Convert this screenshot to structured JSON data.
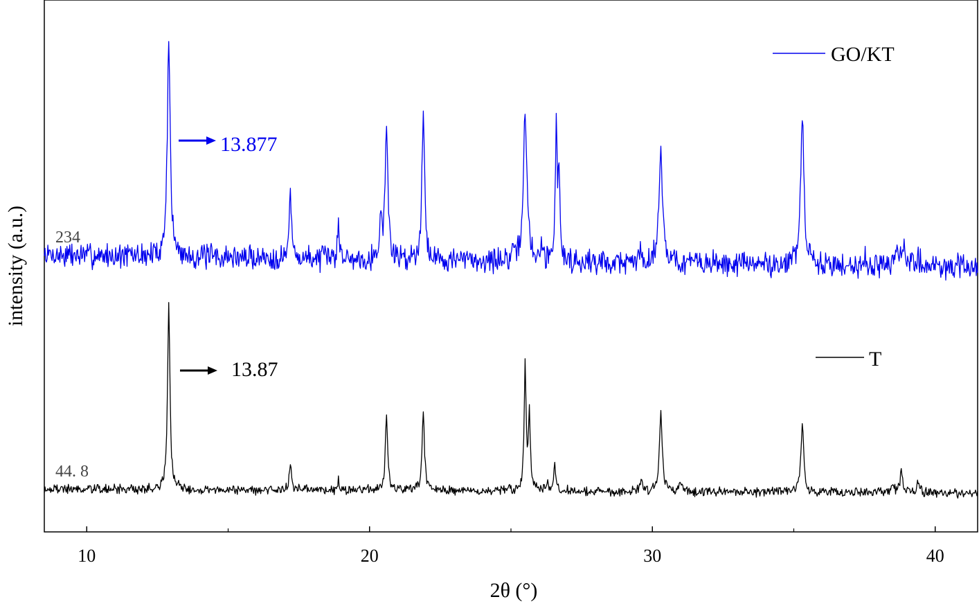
{
  "chart_data": {
    "type": "line",
    "title": "",
    "xlabel": "2θ (°)",
    "ylabel": "intensity (a.u.)",
    "xlim": [
      8.5,
      41.5
    ],
    "x_ticks": [
      10,
      20,
      30,
      40
    ],
    "x_tick_labels": [
      "10",
      "20",
      "30",
      "40"
    ],
    "x_minor_ticks": [
      15,
      25,
      35
    ],
    "y_ticks_visible": false,
    "grid": false,
    "legend_placement": "right",
    "series": [
      {
        "name": "GO/KT",
        "color": "#0000ee",
        "scale_label": "234",
        "baseline": 0.0,
        "noise": 0.045,
        "peaks": [
          {
            "x": 12.9,
            "height": 1.0,
            "width": 0.06
          },
          {
            "x": 17.2,
            "height": 0.28,
            "width": 0.05
          },
          {
            "x": 18.9,
            "height": 0.17,
            "width": 0.04
          },
          {
            "x": 20.4,
            "height": 0.17,
            "width": 0.05
          },
          {
            "x": 20.6,
            "height": 0.57,
            "width": 0.06
          },
          {
            "x": 21.9,
            "height": 0.64,
            "width": 0.06
          },
          {
            "x": 25.5,
            "height": 0.64,
            "width": 0.08
          },
          {
            "x": 26.1,
            "height": 0.05,
            "width": 0.06
          },
          {
            "x": 26.6,
            "height": 0.6,
            "width": 0.04
          },
          {
            "x": 26.7,
            "height": 0.35,
            "width": 0.04
          },
          {
            "x": 29.6,
            "height": 0.05,
            "width": 0.06
          },
          {
            "x": 30.3,
            "height": 0.5,
            "width": 0.08
          },
          {
            "x": 35.3,
            "height": 0.66,
            "width": 0.07
          },
          {
            "x": 37.5,
            "height": 0.03,
            "width": 0.08
          },
          {
            "x": 38.6,
            "height": 0.05,
            "width": 0.1
          },
          {
            "x": 38.9,
            "height": 0.08,
            "width": 0.08
          },
          {
            "x": 39.4,
            "height": 0.05,
            "width": 0.06
          }
        ],
        "annotation": "13.877"
      },
      {
        "name": "T",
        "color": "#000000",
        "scale_label": "44. 8",
        "baseline": 0.0,
        "noise": 0.018,
        "peaks": [
          {
            "x": 12.9,
            "height": 0.86,
            "width": 0.05
          },
          {
            "x": 17.2,
            "height": 0.12,
            "width": 0.05
          },
          {
            "x": 18.9,
            "height": 0.05,
            "width": 0.04
          },
          {
            "x": 20.6,
            "height": 0.34,
            "width": 0.05
          },
          {
            "x": 21.9,
            "height": 0.36,
            "width": 0.05
          },
          {
            "x": 24.9,
            "height": 0.02,
            "width": 0.03
          },
          {
            "x": 25.5,
            "height": 0.58,
            "width": 0.04
          },
          {
            "x": 25.65,
            "height": 0.35,
            "width": 0.04
          },
          {
            "x": 26.3,
            "height": 0.03,
            "width": 0.05
          },
          {
            "x": 26.55,
            "height": 0.11,
            "width": 0.04
          },
          {
            "x": 29.6,
            "height": 0.05,
            "width": 0.08
          },
          {
            "x": 30.3,
            "height": 0.37,
            "width": 0.06
          },
          {
            "x": 31.0,
            "height": 0.03,
            "width": 0.1
          },
          {
            "x": 35.3,
            "height": 0.31,
            "width": 0.06
          },
          {
            "x": 38.5,
            "height": 0.04,
            "width": 0.05
          },
          {
            "x": 38.8,
            "height": 0.11,
            "width": 0.05
          },
          {
            "x": 39.4,
            "height": 0.06,
            "width": 0.05
          }
        ],
        "annotation": "13.87"
      }
    ]
  }
}
